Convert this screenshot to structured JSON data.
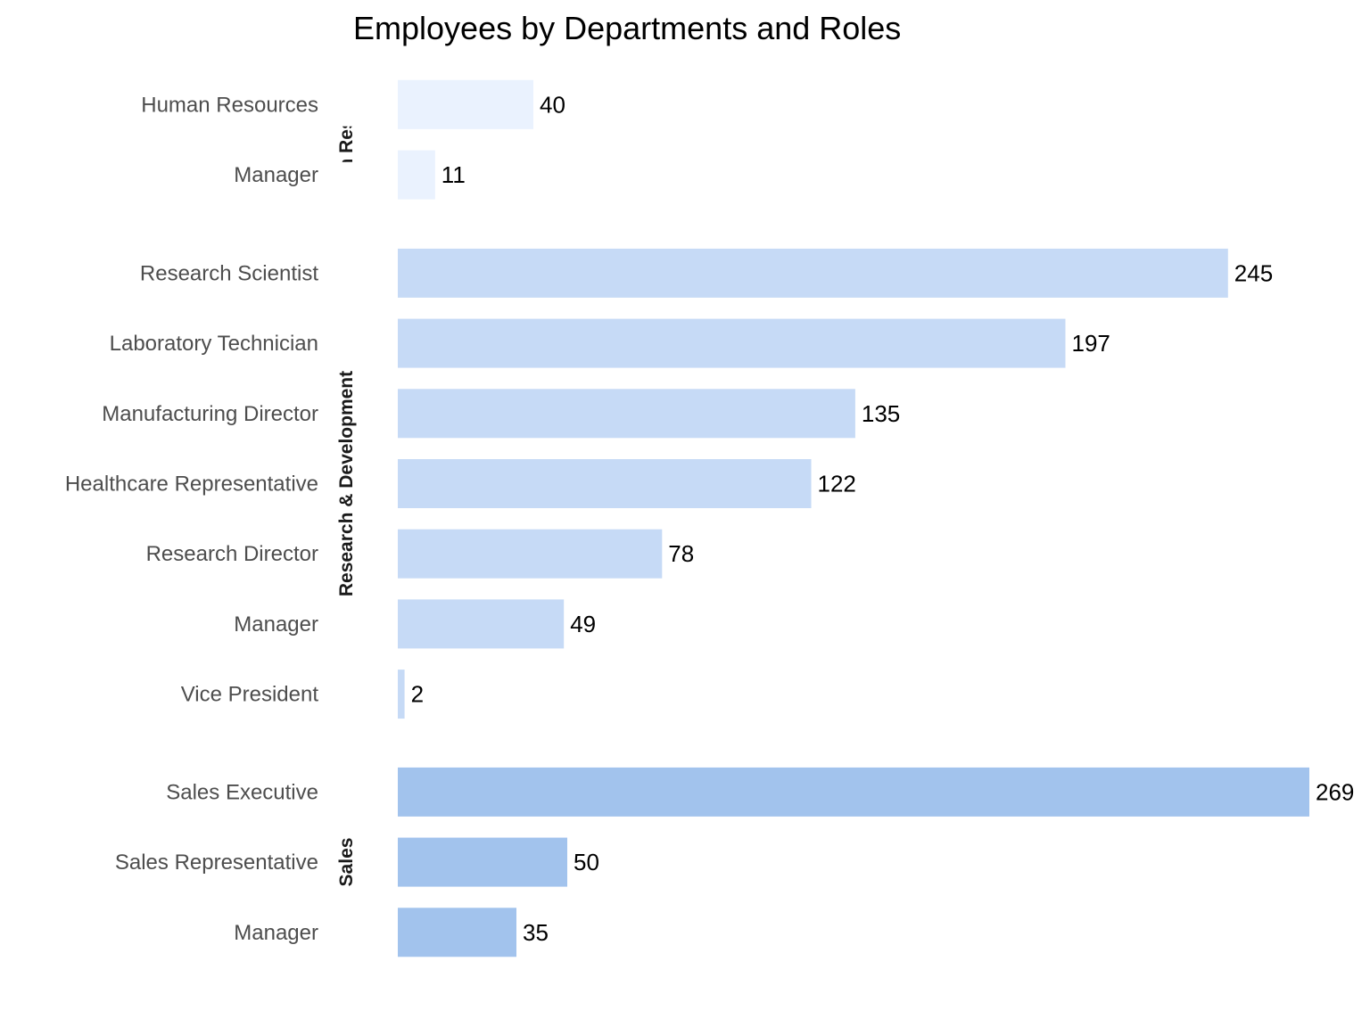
{
  "chart_data": {
    "type": "bar",
    "orientation": "horizontal",
    "title": "Employees by Departments and Roles",
    "xlabel": "",
    "ylabel": "",
    "xlim": [
      0,
      269
    ],
    "grid": false,
    "legend": "none",
    "facets": [
      {
        "name": "Human Resources",
        "color": "#eaf2fe",
        "categories": [
          "Human Resources",
          "Manager"
        ],
        "values": [
          40,
          11
        ]
      },
      {
        "name": "Research & Development",
        "color": "#c6daf6",
        "categories": [
          "Research Scientist",
          "Laboratory Technician",
          "Manufacturing Director",
          "Healthcare Representative",
          "Research Director",
          "Manager",
          "Vice President"
        ],
        "values": [
          245,
          197,
          135,
          122,
          78,
          49,
          2
        ]
      },
      {
        "name": "Sales",
        "color": "#a2c3ed",
        "categories": [
          "Sales Executive",
          "Sales Representative",
          "Manager"
        ],
        "values": [
          269,
          50,
          35
        ]
      }
    ]
  }
}
